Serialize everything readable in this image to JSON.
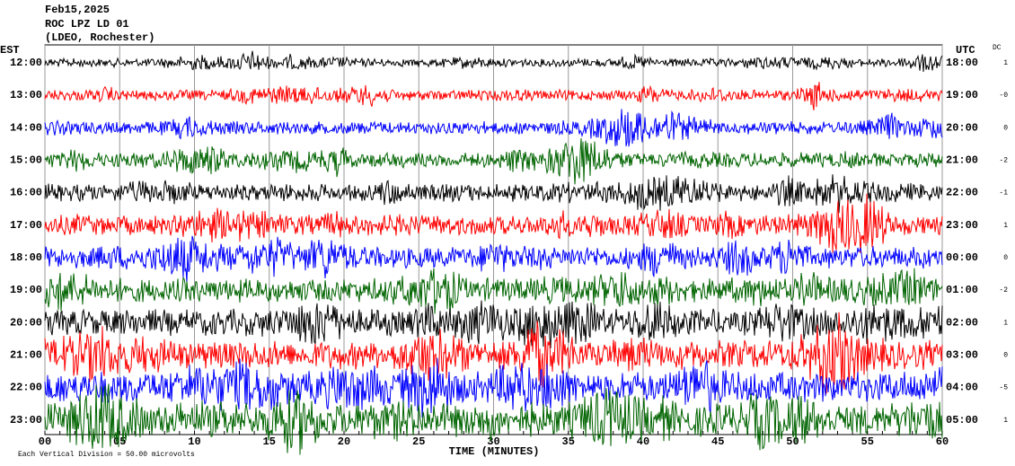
{
  "chart_data": {
    "type": "helicorder",
    "title": [
      "Feb15,2025",
      "ROC LPZ LD 01",
      "(LDEO, Rochester)"
    ],
    "left_axis_label": "EST",
    "right_axis_label": "UTC",
    "dc_label": "DC",
    "x_label": "TIME (MINUTES)",
    "footnote": "Each Vertical Division =   50.00 microvolts",
    "xlim": [
      0,
      60
    ],
    "xticks": [
      {
        "value": 0,
        "label": "00"
      },
      {
        "value": 5,
        "label": "05"
      },
      10,
      15,
      20,
      25,
      30,
      35,
      40,
      45,
      50,
      55,
      60
    ],
    "rows": [
      {
        "est": "12:00",
        "utc": "18:00",
        "dc": "1",
        "color": "#000000"
      },
      {
        "est": "13:00",
        "utc": "19:00",
        "dc": "-0",
        "color": "#ff0000"
      },
      {
        "est": "14:00",
        "utc": "20:00",
        "dc": "0",
        "color": "#0000ff"
      },
      {
        "est": "15:00",
        "utc": "21:00",
        "dc": "-2",
        "color": "#006400"
      },
      {
        "est": "16:00",
        "utc": "22:00",
        "dc": "-1",
        "color": "#000000"
      },
      {
        "est": "17:00",
        "utc": "23:00",
        "dc": "1",
        "color": "#ff0000"
      },
      {
        "est": "18:00",
        "utc": "00:00",
        "dc": "0",
        "color": "#0000ff"
      },
      {
        "est": "19:00",
        "utc": "01:00",
        "dc": "-2",
        "color": "#006400"
      },
      {
        "est": "20:00",
        "utc": "02:00",
        "dc": "1",
        "color": "#000000"
      },
      {
        "est": "21:00",
        "utc": "03:00",
        "dc": "0",
        "color": "#ff0000"
      },
      {
        "est": "22:00",
        "utc": "04:00",
        "dc": "-5",
        "color": "#0000ff"
      },
      {
        "est": "23:00",
        "utc": "05:00",
        "dc": "1",
        "color": "#006400"
      }
    ]
  }
}
